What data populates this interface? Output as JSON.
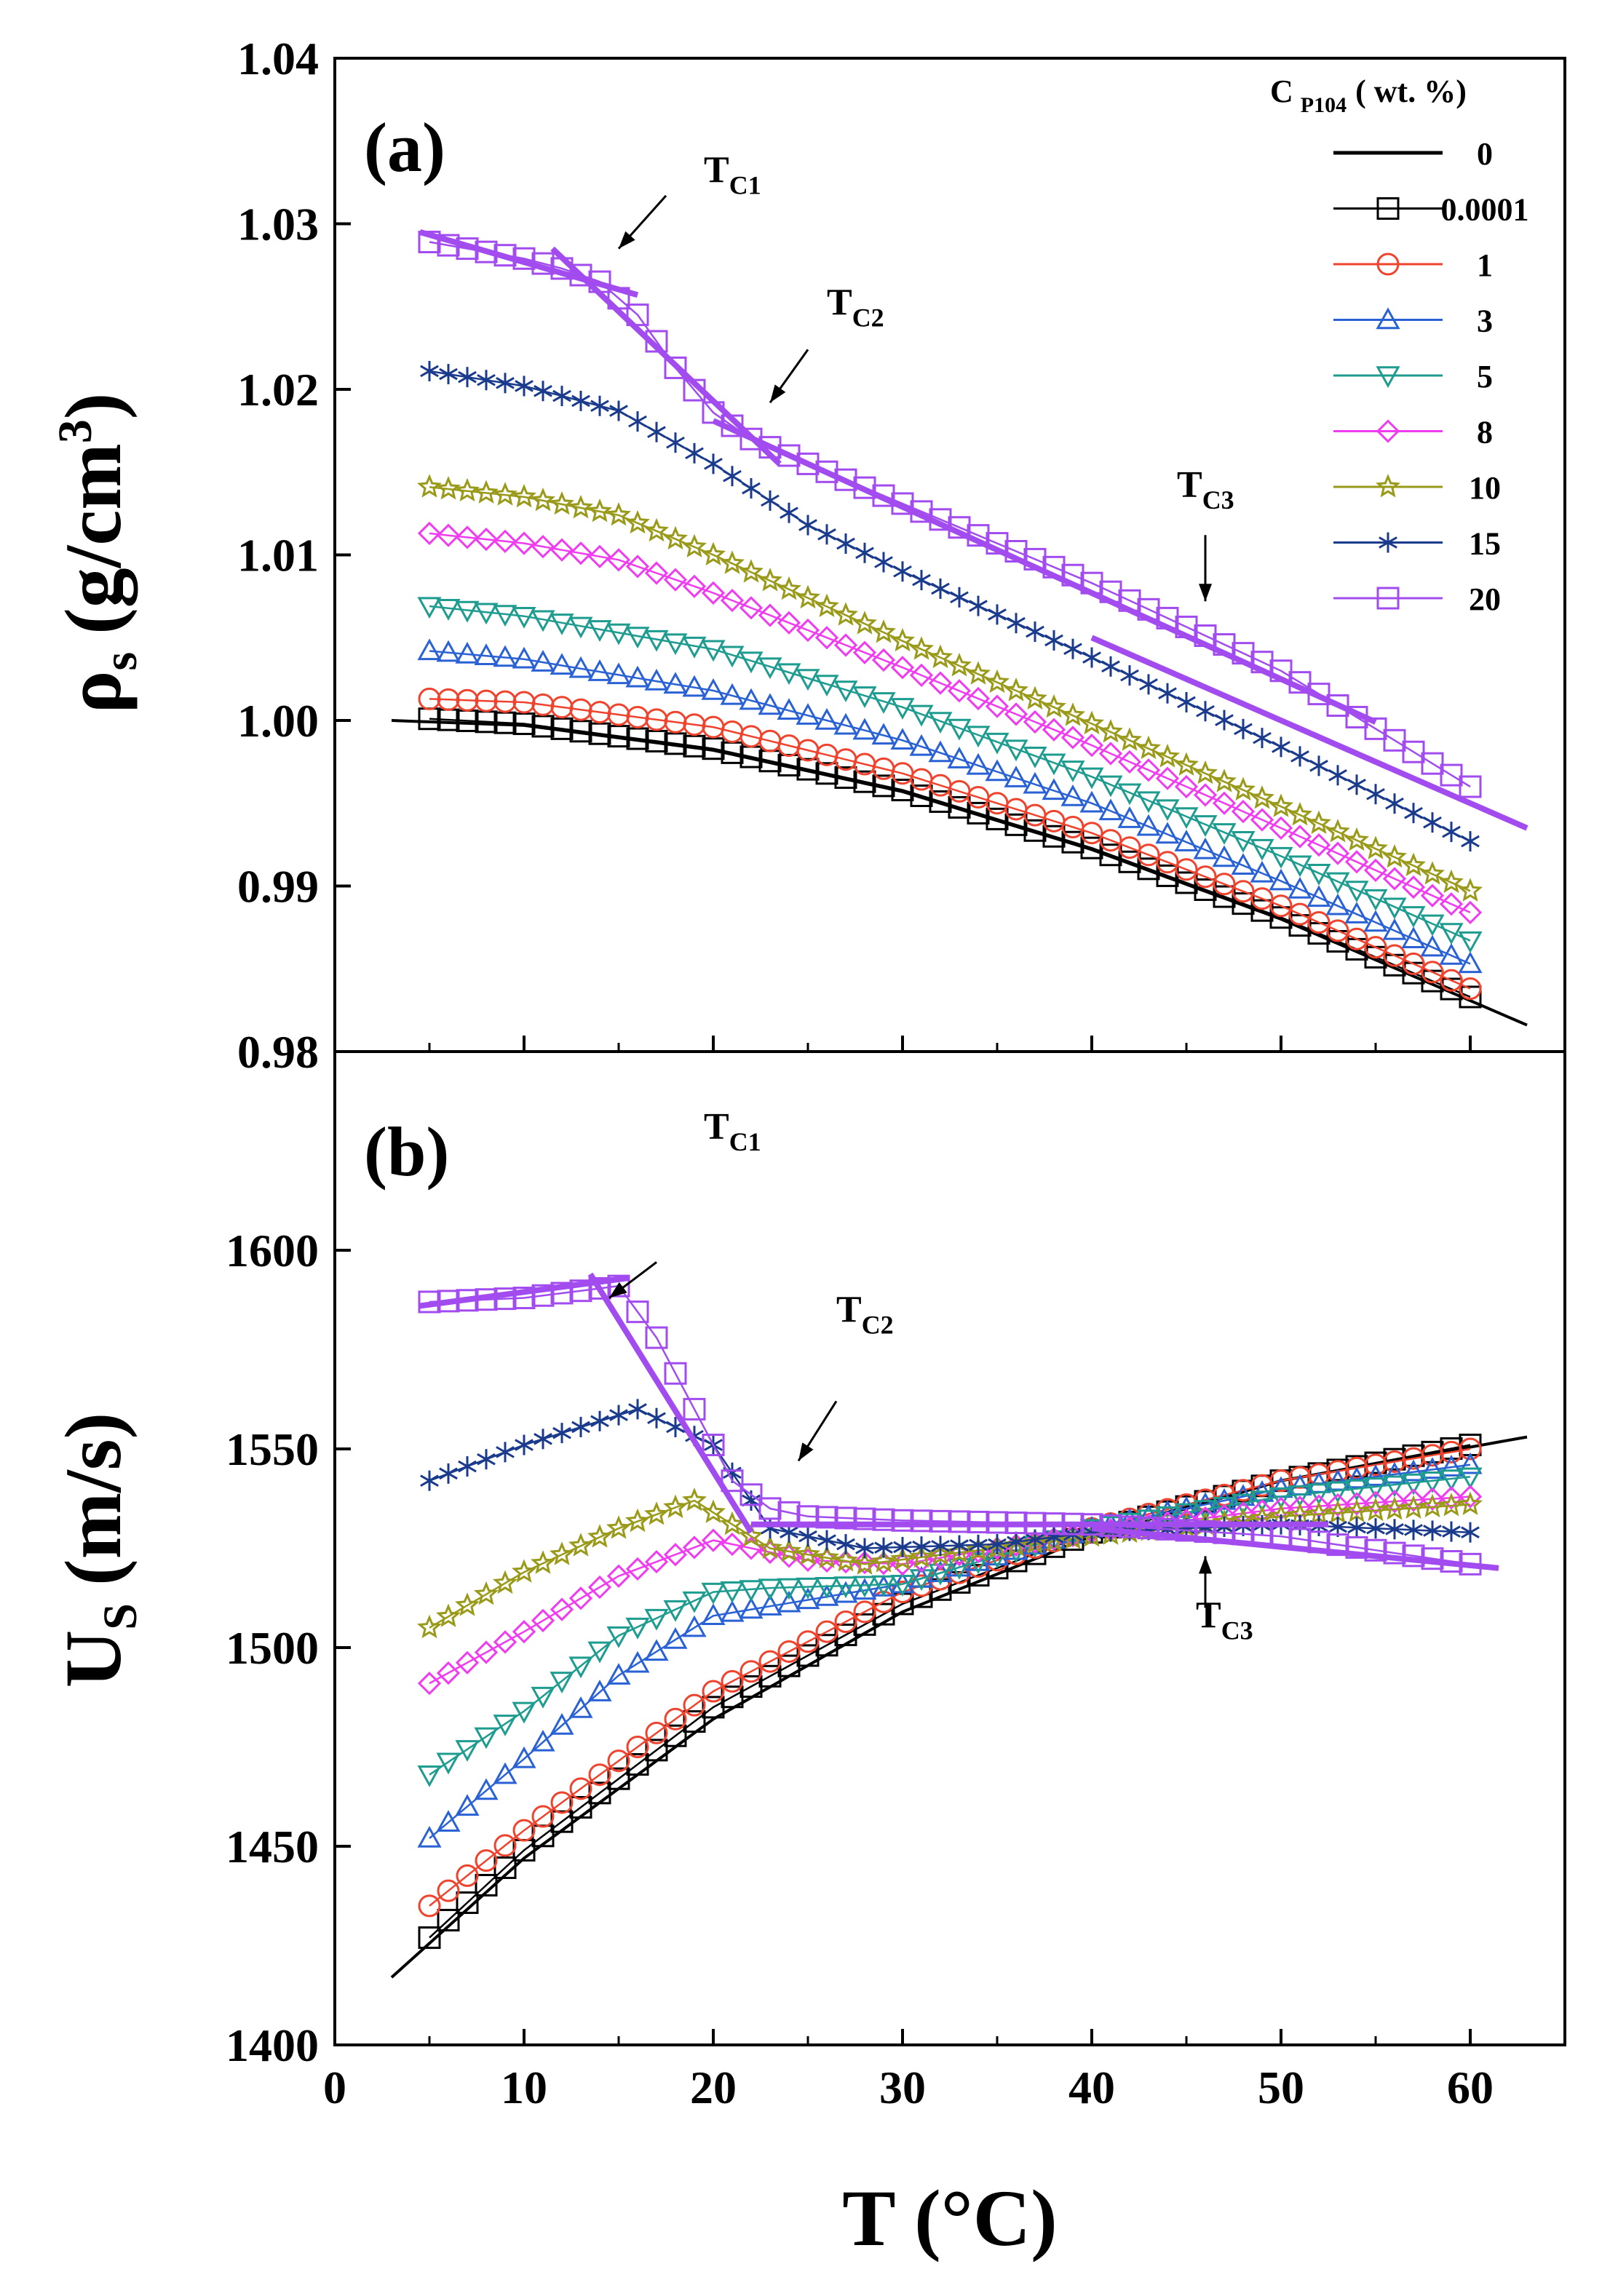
{
  "chart_data": [
    {
      "panel": "(a)",
      "type": "line",
      "ylabel": "ρs (g/cm3)",
      "ylabel_main": "ρ",
      "ylabel_sub": "s",
      "ylabel_unit": "(g/cm",
      "ylabel_sup": "3",
      "ylabel_close": ")",
      "xlim": [
        0,
        65
      ],
      "ylim": [
        0.98,
        1.04
      ],
      "yticks": [
        "1.04",
        "1.03",
        "1.02",
        "1.01",
        "1.00",
        "0.99",
        "0.98"
      ],
      "ytick_values": [
        1.04,
        1.03,
        1.02,
        1.01,
        1.0,
        0.99,
        0.98
      ],
      "legend_title": "C P104 ( wt. %)",
      "legend_title_main": "C",
      "legend_title_sub": "P104",
      "legend_title_rest": "( wt. %)",
      "legend": [
        "0",
        "0.0001",
        "1",
        "3",
        "5",
        "8",
        "10",
        "15",
        "20"
      ],
      "annotations": [
        {
          "label": "T",
          "sub": "C1",
          "x": 19.5,
          "y": 1.0325,
          "arrow": [
            [
              17.5,
              1.0317
            ],
            [
              15.0,
              1.0285
            ]
          ]
        },
        {
          "label": "T",
          "sub": "C2",
          "x": 26.0,
          "y": 1.0245,
          "arrow": [
            [
              25.0,
              1.0224
            ],
            [
              23.0,
              1.0192
            ]
          ]
        },
        {
          "label": "T",
          "sub": "C3",
          "x": 44.5,
          "y": 1.0135,
          "arrow": [
            [
              46.0,
              1.0112
            ],
            [
              46.0,
              1.0072
            ]
          ]
        }
      ],
      "fit_lines": [
        {
          "x": [
            4.5,
            16.0
          ],
          "y": [
            1.0295,
            1.0257
          ]
        },
        {
          "x": [
            11.5,
            23.5
          ],
          "y": [
            1.0285,
            1.0155
          ]
        },
        {
          "x": [
            20.0,
            55.0
          ],
          "y": [
            1.0181,
            0.9999
          ]
        },
        {
          "x": [
            40.0,
            63.0
          ],
          "y": [
            1.005,
            0.9935
          ]
        }
      ],
      "series": [
        {
          "name": "0",
          "marker": "none",
          "color": "#000000",
          "x": [
            3,
            10,
            20,
            30,
            40,
            50,
            63
          ],
          "values": [
            1.0,
            0.9997,
            0.9982,
            0.9957,
            0.9922,
            0.988,
            0.9816
          ]
        },
        {
          "name": "0.0001",
          "marker": "square",
          "color": "#000000",
          "x": [
            5,
            10,
            20,
            30,
            40,
            50,
            60
          ],
          "values": [
            1.0001,
            0.9998,
            0.9983,
            0.9958,
            0.9923,
            0.9881,
            0.9833
          ]
        },
        {
          "name": "1",
          "marker": "circle",
          "color": "#f0432e",
          "x": [
            5,
            10,
            20,
            30,
            40,
            50,
            60
          ],
          "values": [
            1.0013,
            1.0011,
            0.9996,
            0.9968,
            0.9932,
            0.9888,
            0.9838
          ]
        },
        {
          "name": "3",
          "marker": "triangle-up",
          "color": "#2a62d6",
          "x": [
            5,
            10,
            20,
            30,
            40,
            50,
            60
          ],
          "values": [
            1.0042,
            1.0037,
            1.0018,
            0.9988,
            0.995,
            0.9903,
            0.9853
          ]
        },
        {
          "name": "5",
          "marker": "triangle-down",
          "color": "#1e9c8f",
          "x": [
            5,
            10,
            20,
            30,
            40,
            50,
            60
          ],
          "values": [
            1.0069,
            1.0063,
            1.0043,
            1.0008,
            0.9966,
            0.9918,
            0.9867
          ]
        },
        {
          "name": "8",
          "marker": "diamond",
          "color": "#f03cf0",
          "x": [
            5,
            10,
            15,
            20,
            30,
            40,
            50,
            60
          ],
          "values": [
            1.0113,
            1.0107,
            1.0097,
            1.0077,
            1.0032,
            0.9985,
            0.9935,
            0.9884
          ]
        },
        {
          "name": "10",
          "marker": "star",
          "color": "#9a9a1a",
          "x": [
            5,
            10,
            15,
            20,
            30,
            40,
            50,
            60
          ],
          "values": [
            1.0141,
            1.0135,
            1.0124,
            1.01,
            1.0048,
            0.9998,
            0.9948,
            0.9897
          ]
        },
        {
          "name": "15",
          "marker": "asterisk",
          "color": "#1a3a8c",
          "x": [
            5,
            10,
            15,
            20,
            25,
            30,
            40,
            50,
            60
          ],
          "values": [
            1.0211,
            1.0202,
            1.0187,
            1.0155,
            1.0118,
            1.009,
            1.0038,
            0.9984,
            0.9927
          ]
        },
        {
          "name": "20",
          "marker": "square",
          "color": "#a24cf0",
          "x": [
            5,
            10,
            12,
            14,
            16,
            18,
            20,
            22,
            25,
            30,
            40,
            50,
            60
          ],
          "values": [
            1.0289,
            1.0279,
            1.0273,
            1.0265,
            1.0245,
            1.0213,
            1.0186,
            1.017,
            1.0155,
            1.0131,
            1.0083,
            1.003,
            0.996
          ]
        }
      ]
    },
    {
      "panel": "(b)",
      "type": "line",
      "xlabel": "T (°C)",
      "ylabel": "US (m/s)",
      "ylabel_main": "U",
      "ylabel_sub": "S",
      "ylabel_unit": "(m/s)",
      "xlim": [
        0,
        65
      ],
      "ylim": [
        1400,
        1650
      ],
      "xticks": [
        "0",
        "10",
        "20",
        "30",
        "40",
        "50",
        "60"
      ],
      "xtick_values": [
        0,
        10,
        20,
        30,
        40,
        50,
        60
      ],
      "yticks": [
        "1600",
        "1550",
        "1500",
        "1450",
        "1400"
      ],
      "ytick_values": [
        1600,
        1550,
        1500,
        1450,
        1400
      ],
      "annotations": [
        {
          "label": "T",
          "sub": "C1",
          "x": 19.5,
          "y": 1628,
          "arrow": [
            [
              17.0,
              1597
            ],
            [
              14.5,
              1588
            ]
          ]
        },
        {
          "label": "T",
          "sub": "C2",
          "x": 26.5,
          "y": 1582,
          "arrow": [
            [
              26.5,
              1562
            ],
            [
              24.5,
              1547
            ]
          ]
        },
        {
          "label": "T",
          "sub": "C3",
          "x": 45.5,
          "y": 1505,
          "arrow": [
            [
              46.0,
              1510
            ],
            [
              46.0,
              1523
            ]
          ]
        }
      ],
      "fit_lines": [
        {
          "x": [
            4.5,
            15.5
          ],
          "y": [
            1586,
            1593
          ]
        },
        {
          "x": [
            13.5,
            22.0
          ],
          "y": [
            1594,
            1529
          ]
        },
        {
          "x": [
            22.0,
            52.5
          ],
          "y": [
            1531,
            1531
          ]
        },
        {
          "x": [
            40.0,
            61.5
          ],
          "y": [
            1530,
            1520
          ]
        }
      ],
      "series": [
        {
          "name": "0",
          "marker": "none",
          "color": "#000000",
          "x": [
            3,
            10,
            20,
            30,
            40,
            50,
            63
          ],
          "values": [
            1417,
            1447,
            1482,
            1509,
            1528,
            1542,
            1553
          ]
        },
        {
          "name": "0.0001",
          "marker": "square",
          "color": "#000000",
          "x": [
            5,
            10,
            20,
            30,
            40,
            50,
            60
          ],
          "values": [
            1427,
            1449,
            1485,
            1511,
            1529,
            1542,
            1551
          ]
        },
        {
          "name": "1",
          "marker": "circle",
          "color": "#f0432e",
          "x": [
            5,
            10,
            20,
            30,
            40,
            50,
            60
          ],
          "values": [
            1435,
            1454,
            1489,
            1514,
            1530,
            1542,
            1550
          ]
        },
        {
          "name": "3",
          "marker": "triangle-up",
          "color": "#2a62d6",
          "x": [
            5,
            10,
            15,
            20,
            25,
            30,
            40,
            50,
            60
          ],
          "values": [
            1452,
            1472,
            1493,
            1508,
            1512,
            1516,
            1530,
            1540,
            1546
          ]
        },
        {
          "name": "5",
          "marker": "triangle-down",
          "color": "#1e9c8f",
          "x": [
            5,
            10,
            15,
            20,
            23,
            30,
            40,
            50,
            60
          ],
          "values": [
            1468,
            1484,
            1503,
            1514,
            1515,
            1516,
            1530,
            1538,
            1543
          ]
        },
        {
          "name": "8",
          "marker": "diamond",
          "color": "#f03cf0",
          "x": [
            5,
            10,
            15,
            20,
            25,
            30,
            40,
            50,
            60
          ],
          "values": [
            1491,
            1504,
            1518,
            1527,
            1522,
            1521,
            1529,
            1535,
            1538
          ]
        },
        {
          "name": "10",
          "marker": "star",
          "color": "#9a9a1a",
          "x": [
            5,
            10,
            15,
            19,
            23,
            28,
            40,
            50,
            60
          ],
          "values": [
            1505,
            1519,
            1530,
            1537,
            1525,
            1521,
            1528,
            1533,
            1536
          ]
        },
        {
          "name": "15",
          "marker": "asterisk",
          "color": "#1a3a8c",
          "x": [
            5,
            10,
            16,
            20,
            23,
            28,
            35,
            40,
            50,
            60
          ],
          "values": [
            1542,
            1551,
            1560,
            1551,
            1530,
            1525,
            1526,
            1529,
            1531,
            1529
          ]
        },
        {
          "name": "20",
          "marker": "square",
          "color": "#a24cf0",
          "x": [
            5,
            10,
            15,
            17,
            19,
            21,
            23,
            25,
            30,
            40,
            50,
            60
          ],
          "values": [
            1587,
            1588,
            1591,
            1578,
            1560,
            1542,
            1535,
            1533,
            1532,
            1531,
            1528,
            1521
          ]
        }
      ]
    }
  ]
}
